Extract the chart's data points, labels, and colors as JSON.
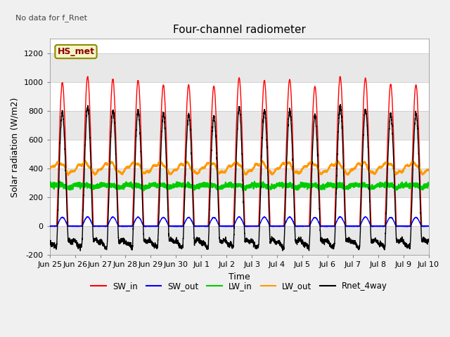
{
  "title": "Four-channel radiometer",
  "top_left_text": "No data for f_Rnet",
  "annotation_box": "HS_met",
  "xlabel": "Time",
  "ylabel": "Solar radiation (W/m2)",
  "ylim": [
    -200,
    1300
  ],
  "yticks": [
    -200,
    0,
    200,
    400,
    600,
    800,
    1000,
    1200
  ],
  "fig_bg": "#f0f0f0",
  "plot_bg": "#ffffff",
  "series": {
    "SW_in": {
      "color": "#ff0000",
      "lw": 1.0
    },
    "SW_out": {
      "color": "#0000ff",
      "lw": 1.0
    },
    "LW_in": {
      "color": "#00cc00",
      "lw": 1.5
    },
    "LW_out": {
      "color": "#ff9900",
      "lw": 1.5
    },
    "Rnet_4way": {
      "color": "#000000",
      "lw": 1.0
    }
  },
  "tick_labels": [
    "Jun 25",
    "Jun 26",
    "Jun 27",
    "Jun 28",
    "Jun 29",
    "Jun 30",
    "Jul 1",
    "Jul 2",
    "Jul 3",
    "Jul 4",
    "Jul 5",
    "Jul 6",
    "Jul 7",
    "Jul 8",
    "Jul 9",
    "Jul 10"
  ],
  "num_days": 15,
  "samples_per_day": 288,
  "figsize": [
    6.4,
    4.8
  ],
  "dpi": 100
}
